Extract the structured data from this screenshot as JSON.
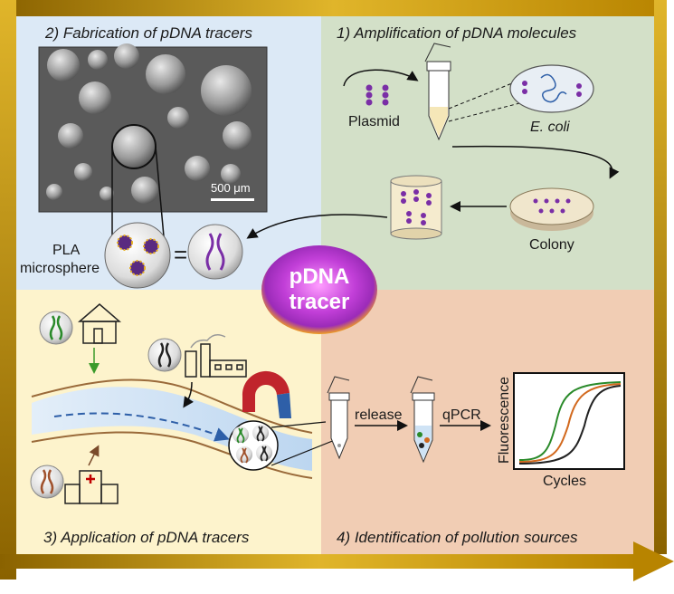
{
  "panels": {
    "fabrication": {
      "title": "2) Fabrication of pDNA tracers",
      "scale_bar": "500 μm",
      "pla_line1": "PLA",
      "pla_line2": "microsphere",
      "equals": "="
    },
    "amplification": {
      "title": "1) Amplification of pDNA molecules",
      "plasmid": "Plasmid",
      "ecoli_prefix": "E. ",
      "ecoli_suffix": "coli",
      "colony": "Colony"
    },
    "application": {
      "title": "3) Application of pDNA tracers"
    },
    "identification": {
      "title": "4) Identification of pollution sources",
      "release": "release",
      "qpcr": "qPCR",
      "ylabel": "Fluorescence",
      "xlabel": "Cycles"
    }
  },
  "center": {
    "line1": "pDNA",
    "line2": "tracer"
  },
  "colors": {
    "blue_panel": "#dce9f6",
    "green_panel": "#d3e0c8",
    "yellow_panel": "#fdf3cc",
    "salmon_panel": "#f1cdb4",
    "frame_gold": "#c89a12",
    "plasmid_purple": "#7a2ea6",
    "curve_green": "#2a8a2a",
    "curve_orange": "#d2691e",
    "curve_black": "#222222"
  }
}
